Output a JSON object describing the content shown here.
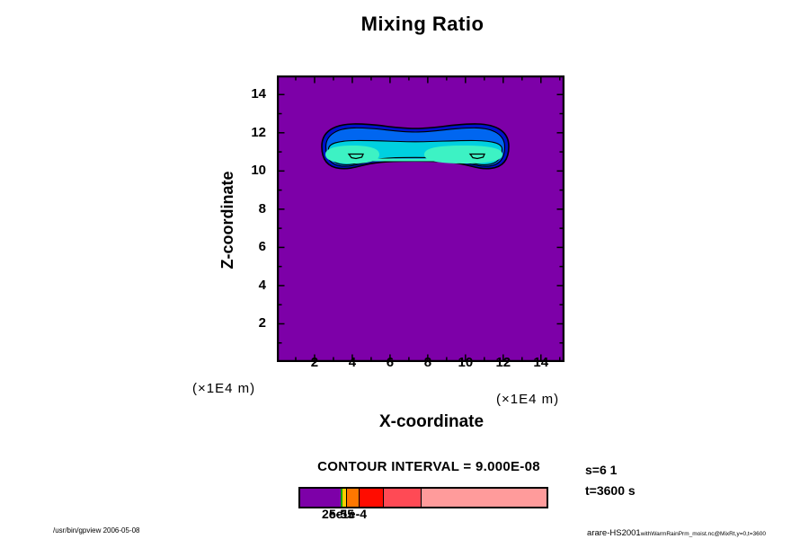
{
  "title": "Mixing Ratio",
  "plot": {
    "xlabel": "X-coordinate",
    "ylabel": "Z-coordinate",
    "x_unit_left": "(×1E4 m)",
    "x_unit_right": "(×1E4 m)",
    "xlim": [
      0,
      15.25
    ],
    "ylim": [
      0,
      15.0
    ],
    "x_major_ticks": [
      2,
      4,
      6,
      8,
      10,
      12,
      14
    ],
    "y_major_ticks": [
      2,
      4,
      6,
      8,
      10,
      12,
      14
    ],
    "minor_tick_step": 1
  },
  "colors": {
    "background": "#7D00A8",
    "level1": "#0011CC",
    "level2": "#0066F0",
    "level3": "#00D0E0",
    "core": "#3DF2C4",
    "frame": "#000000"
  },
  "contour_note": "CONTOUR INTERVAL = 9.000E-08",
  "colorbar": {
    "segments": [
      {
        "color": "#7D00A8",
        "weight": 45,
        "divider": false
      },
      {
        "color": "#00A400",
        "weight": 2.5,
        "divider": false
      },
      {
        "color": "#FFCC00",
        "weight": 3.5,
        "divider": false
      },
      {
        "color": "#FF7700",
        "weight": 13,
        "divider": true
      },
      {
        "color": "#FF0C00",
        "weight": 26,
        "divider": true
      },
      {
        "color": "#FF4A55",
        "weight": 41,
        "divider": true
      },
      {
        "color": "#FF9B9B",
        "weight": 140,
        "divider": true
      }
    ],
    "labels": [
      {
        "text": "2e-5",
        "dx": 26
      },
      {
        "text": "5e-5",
        "dx": 34
      },
      {
        "text": "1e-4",
        "dx": 48
      }
    ]
  },
  "annotations": {
    "s_note": "s=6 1",
    "t_note": "t=3600 s"
  },
  "footer": {
    "left": "/usr/bin/gpview 2006-05-08",
    "right_main": "arare-HS2001",
    "right_sub": "withWarmRainPrm_moist.nc@MixRt,y=0,t=3600"
  },
  "chart_data": {
    "type": "heatmap",
    "subtype": "filled-contour",
    "title": "Mixing Ratio",
    "xlabel": "X-coordinate",
    "ylabel": "Z-coordinate",
    "x_unit": "(×1E4 m)",
    "y_unit": "(×1E4 m)",
    "xlim": [
      0,
      15.25
    ],
    "ylim": [
      0,
      15.0
    ],
    "x_ticks": [
      2,
      4,
      6,
      8,
      10,
      12,
      14
    ],
    "y_ticks": [
      2,
      4,
      6,
      8,
      10,
      12,
      14
    ],
    "contour_interval": "9.000E-08",
    "grid": false,
    "legend_position": "bottom-colorbar",
    "colorbar_boundary_labels": [
      "2e-5",
      "5e-5",
      "1e-4"
    ],
    "field_description": "Background at lowest level (purple). One dumbbell-shaped elevated region centered near z=11: outer contour spans x 2.4-12.3, z 10.1-12.5; nested contours at x 2.6-12.1 z 10.3-12.3 and x 2.7-12.0 z 10.3-11.7; two maxima cores (aquamarine) at x 2.6-5.4 and x 7.8-11.9, z 10.4-11.4, joined by a thin strip along z~10.6; tiny innermost closed contours near (4.1,10.7) and (10.5,10.7)",
    "levels_colors": [
      "#7D00A8",
      "#0011CC",
      "#0066F0",
      "#00D0E0",
      "#3DF2C4"
    ],
    "annotations": [
      "s=6 1",
      "t=3600 s"
    ]
  }
}
